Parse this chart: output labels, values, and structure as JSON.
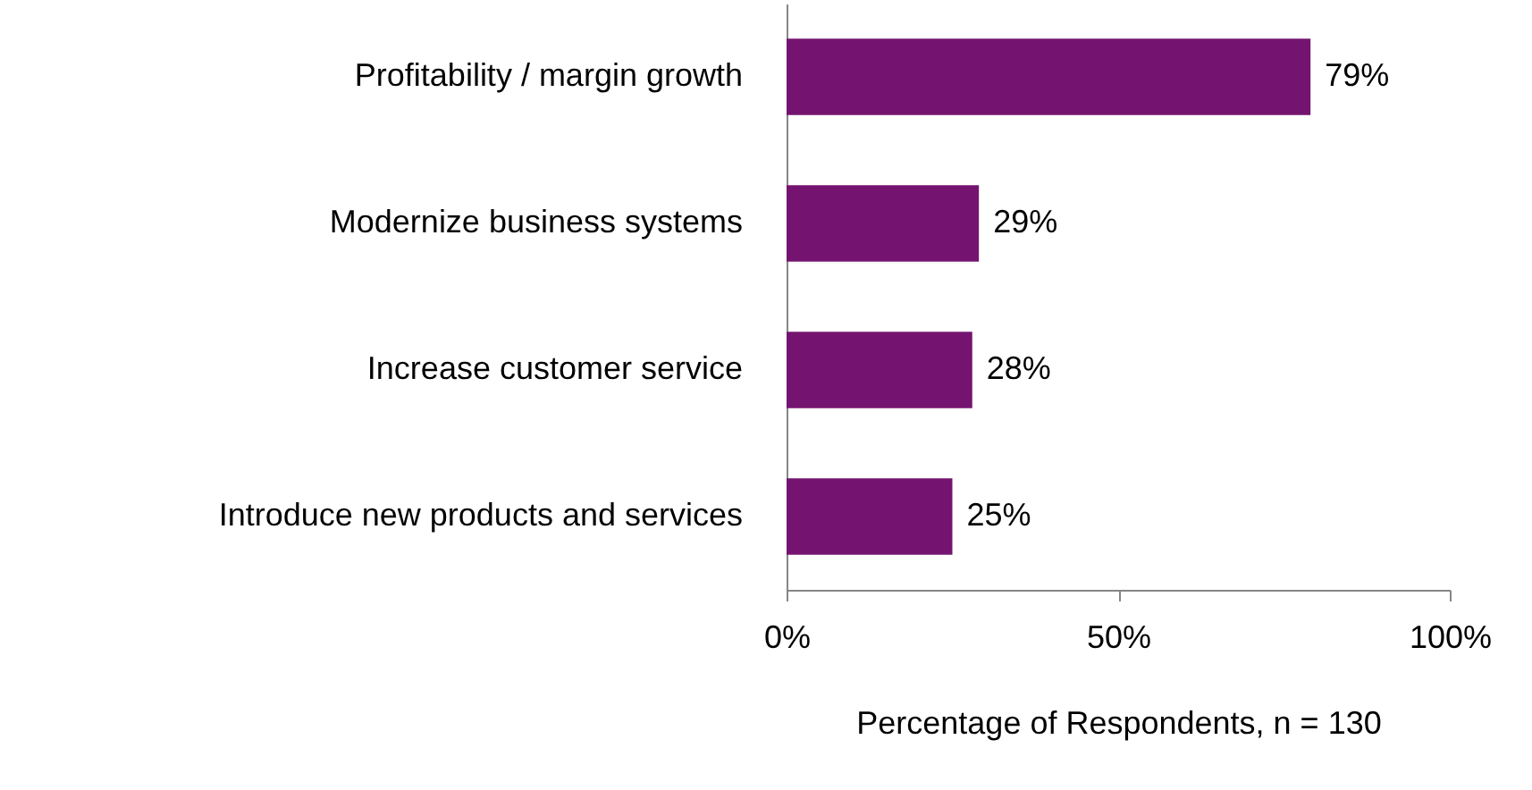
{
  "chart_data": {
    "type": "bar",
    "orientation": "horizontal",
    "xlabel": "Percentage of Respondents, n = 130",
    "categories": [
      "Profitability / margin growth",
      "Modernize business systems",
      "Increase customer service",
      "Introduce new products and services"
    ],
    "values": [
      79,
      29,
      28,
      25
    ],
    "color": "#751470",
    "value_labels": [
      "79%",
      "29%",
      "28%",
      "25%"
    ],
    "xlim": [
      0,
      100
    ],
    "xticks": [
      {
        "value": 0,
        "label": "0%"
      },
      {
        "value": 50,
        "label": "50%"
      },
      {
        "value": 100,
        "label": "100%"
      }
    ],
    "grid": false
  }
}
